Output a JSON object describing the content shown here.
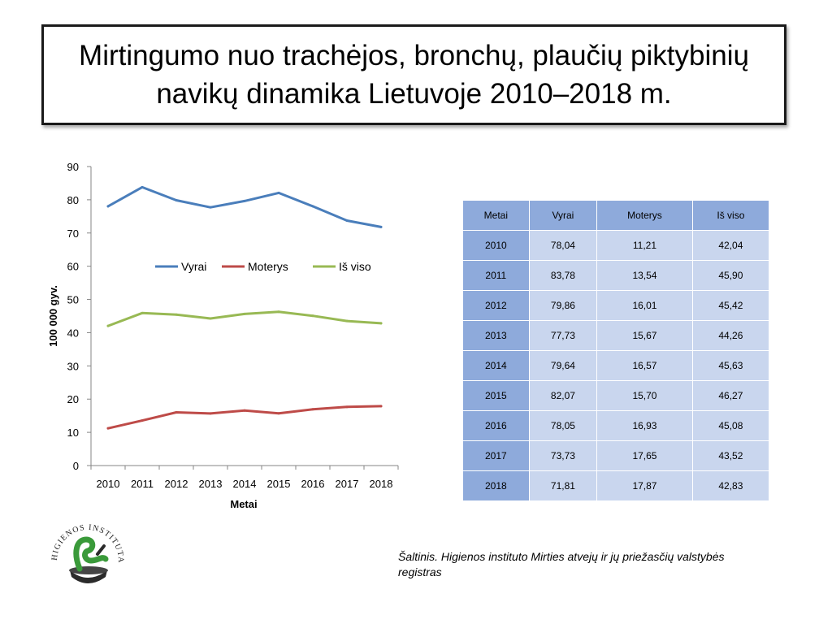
{
  "slide": {
    "title": "Mirtingumo nuo trachėjos, bronchų, plaučių piktybinių navikų dinamika Lietuvoje 2010–2018 m.",
    "source": "Šaltinis. Higienos instituto  Mirties atvejų ir jų priežasčių valstybės registras",
    "logo_text": "HIGIENOS INSTITUTAS"
  },
  "chart_data": {
    "type": "line",
    "x": [
      "2010",
      "2011",
      "2012",
      "2013",
      "2014",
      "2015",
      "2016",
      "2017",
      "2018"
    ],
    "series": [
      {
        "name": "Vyrai",
        "color": "#4a7ebb",
        "values": [
          78.04,
          83.78,
          79.86,
          77.73,
          79.64,
          82.07,
          78.05,
          73.73,
          71.81
        ]
      },
      {
        "name": "Moterys",
        "color": "#be4b48",
        "values": [
          11.21,
          13.54,
          16.01,
          15.67,
          16.57,
          15.7,
          16.93,
          17.65,
          17.87
        ]
      },
      {
        "name": "Iš viso",
        "color": "#98b954",
        "values": [
          42.04,
          45.9,
          45.42,
          44.26,
          45.63,
          46.27,
          45.08,
          43.52,
          42.83
        ]
      }
    ],
    "xlabel": "Metai",
    "ylabel": "100 000 gyv.",
    "ylim": [
      0,
      90
    ],
    "yticks": [
      "0",
      "10",
      "20",
      "30",
      "40",
      "50",
      "60",
      "70",
      "80",
      "90"
    ],
    "grid": false,
    "legend": "top-center-inside"
  },
  "table": {
    "headers": [
      "Metai",
      "Vyrai",
      "Moterys",
      "Iš viso"
    ],
    "rows": [
      [
        "2010",
        "78,04",
        "11,21",
        "42,04"
      ],
      [
        "2011",
        "83,78",
        "13,54",
        "45,90"
      ],
      [
        "2012",
        "79,86",
        "16,01",
        "45,42"
      ],
      [
        "2013",
        "77,73",
        "15,67",
        "44,26"
      ],
      [
        "2014",
        "79,64",
        "16,57",
        "45,63"
      ],
      [
        "2015",
        "82,07",
        "15,70",
        "46,27"
      ],
      [
        "2016",
        "78,05",
        "16,93",
        "45,08"
      ],
      [
        "2017",
        "73,73",
        "17,65",
        "43,52"
      ],
      [
        "2018",
        "71,81",
        "17,87",
        "42,83"
      ]
    ]
  }
}
